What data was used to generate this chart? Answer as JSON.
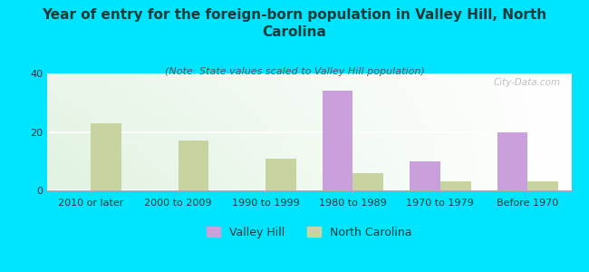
{
  "title": "Year of entry for the foreign-born population in Valley Hill, North\nCarolina",
  "subtitle": "(Note: State values scaled to Valley Hill population)",
  "categories": [
    "2010 or later",
    "2000 to 2009",
    "1990 to 1999",
    "1980 to 1989",
    "1970 to 1979",
    "Before 1970"
  ],
  "valley_hill": [
    0,
    0,
    0,
    34,
    10,
    20
  ],
  "north_carolina": [
    23,
    17,
    11,
    6,
    3,
    3
  ],
  "valley_hill_color": "#c9a0dc",
  "north_carolina_color": "#c8d4a0",
  "background_color": "#00e5ff",
  "ylim": [
    0,
    40
  ],
  "yticks": [
    0,
    20,
    40
  ],
  "title_fontsize": 11,
  "subtitle_fontsize": 8,
  "legend_fontsize": 9,
  "tick_fontsize": 8,
  "bar_width": 0.35,
  "watermark": "City-Data.com",
  "title_color": "#1a3a3a",
  "subtitle_color": "#555555"
}
